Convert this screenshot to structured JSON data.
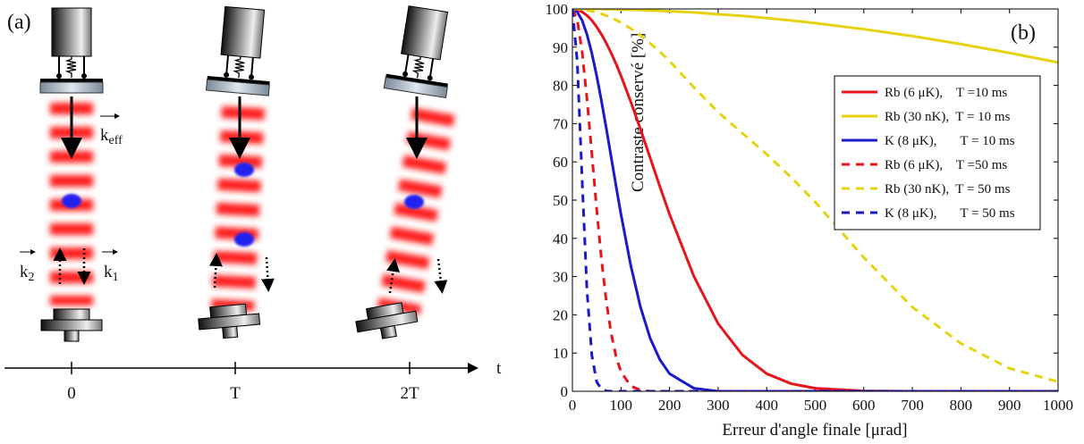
{
  "panel_a": {
    "label": "(a)",
    "k_eff": {
      "base": "k",
      "sub": "eff"
    },
    "k2": {
      "base": "k",
      "sub": "2"
    },
    "k1": {
      "base": "k",
      "sub": "1"
    },
    "time_ticks": [
      "0",
      "T",
      "2T"
    ],
    "time_label": "t"
  },
  "chart_data": {
    "type": "line",
    "panel_label": "(b)",
    "x_label": "Erreur d'angle finale [μrad]",
    "y_label": "Contraste conservé [%]",
    "x": [
      0,
      10,
      20,
      30,
      40,
      50,
      60,
      70,
      80,
      90,
      100,
      120,
      140,
      160,
      180,
      200,
      250,
      300,
      350,
      400,
      450,
      500,
      600,
      700,
      800,
      900,
      1000
    ],
    "series": [
      {
        "name": "Rb (6 μK),    T =10 ms",
        "color": "#e8141b",
        "linestyle": "solid",
        "values": [
          100,
          99.8,
          99.2,
          98.3,
          97.0,
          95.3,
          93.3,
          91.0,
          88.4,
          85.6,
          82.5,
          75.8,
          68.6,
          61.1,
          53.6,
          46.3,
          30.1,
          17.7,
          9.5,
          4.6,
          2.0,
          0.8,
          0.1,
          0,
          0,
          0,
          0
        ]
      },
      {
        "name": "Rb (30 nK),  T = 10 ms",
        "color": "#e6d20f",
        "linestyle": "solid",
        "values": [
          100,
          100,
          100,
          100,
          100,
          100,
          100,
          99.9,
          99.9,
          99.9,
          99.8,
          99.8,
          99.7,
          99.6,
          99.5,
          99.4,
          99.1,
          98.6,
          98.2,
          97.6,
          97.0,
          96.3,
          94.7,
          92.9,
          90.8,
          88.5,
          86.0
        ]
      },
      {
        "name": "K (8 μK),       T = 10 ms",
        "color": "#1a1acc",
        "linestyle": "solid",
        "values": [
          100,
          99.2,
          97.0,
          93.3,
          88.4,
          82.5,
          75.8,
          68.6,
          61.1,
          53.6,
          46.3,
          33.0,
          22.1,
          13.9,
          8.3,
          4.6,
          0.8,
          0,
          0,
          0,
          0,
          0,
          0,
          0,
          0,
          0,
          0
        ]
      },
      {
        "name": "Rb (6 μK),    T =50 ms",
        "color": "#e8141b",
        "linestyle": "dashed",
        "values": [
          100,
          97.1,
          88.8,
          76.5,
          62.1,
          47.6,
          34.3,
          23.3,
          15.0,
          9.0,
          5.1,
          1.4,
          0.3,
          0,
          0,
          0,
          0,
          0,
          0,
          0,
          0,
          0,
          0,
          0,
          0,
          0,
          0
        ]
      },
      {
        "name": "Rb (30 nK),  T = 50 ms",
        "color": "#e6d20f",
        "linestyle": "dashed",
        "values": [
          100,
          100,
          99.9,
          99.7,
          99.4,
          99.1,
          98.7,
          98.2,
          97.7,
          97.1,
          96.4,
          94.9,
          93.1,
          91.0,
          88.8,
          86.4,
          79.5,
          73.0,
          67.5,
          62.0,
          56.0,
          49.5,
          35.0,
          22.0,
          12.5,
          6.0,
          2.5
        ]
      },
      {
        "name": "K (8 μK),       T = 50 ms",
        "color": "#1a1acc",
        "linestyle": "dashed",
        "values": [
          100,
          86.2,
          55.3,
          26.4,
          9.4,
          2.5,
          0.5,
          0.1,
          0,
          0,
          0,
          0,
          0,
          0,
          0,
          0,
          0,
          0,
          0,
          0,
          0,
          0,
          0,
          0,
          0,
          0,
          0
        ]
      }
    ],
    "xlim": [
      0,
      1000
    ],
    "xticks": [
      0,
      100,
      200,
      300,
      400,
      500,
      600,
      700,
      800,
      900,
      1000
    ],
    "ylim": [
      0,
      100
    ],
    "yticks": [
      0,
      10,
      20,
      30,
      40,
      50,
      60,
      70,
      80,
      90,
      100
    ],
    "grid": false,
    "legend": "upper right"
  }
}
